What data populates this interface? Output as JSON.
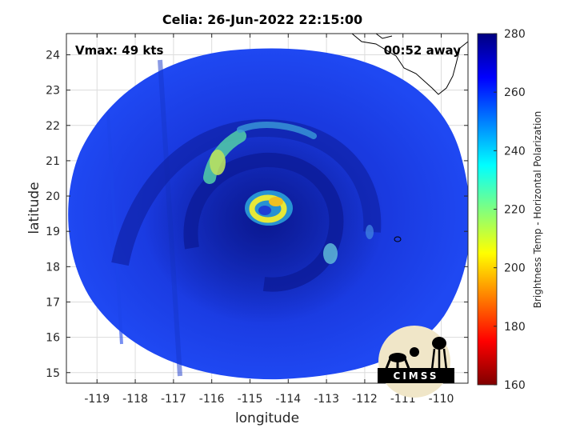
{
  "title": "Celia: 26-Jun-2022 22:15:00",
  "annotations": {
    "vmax": "Vmax: 49 kts",
    "away": "00:52 away"
  },
  "colorbar": {
    "label": "Brightness Temp - Horizontal Polarization",
    "ticks": [
      160,
      180,
      200,
      220,
      240,
      260,
      280
    ],
    "range": [
      160,
      280
    ]
  },
  "logo": {
    "text": "CIMSS"
  },
  "colors": {
    "background_scene": "#1a3fe6",
    "deep_blue": "#0d1fa8",
    "eye_ring": "#f0e020",
    "band_green": "#7ee07a"
  },
  "chart_data": {
    "type": "heatmap",
    "title": "Celia: 26-Jun-2022 22:15:00",
    "xlabel": "longitude",
    "ylabel": "latitude",
    "xlim": [
      -119.8,
      -109.3
    ],
    "ylim": [
      14.7,
      24.6
    ],
    "x_ticks": [
      -119,
      -118,
      -117,
      -116,
      -115,
      -114,
      -113,
      -112,
      -111,
      -110
    ],
    "y_ticks": [
      15,
      16,
      17,
      18,
      19,
      20,
      21,
      22,
      23,
      24
    ],
    "grid": true,
    "storm_center": {
      "lon": -114.3,
      "lat": 19.6
    },
    "colorscale": "jet",
    "value_range": [
      160,
      280
    ]
  }
}
